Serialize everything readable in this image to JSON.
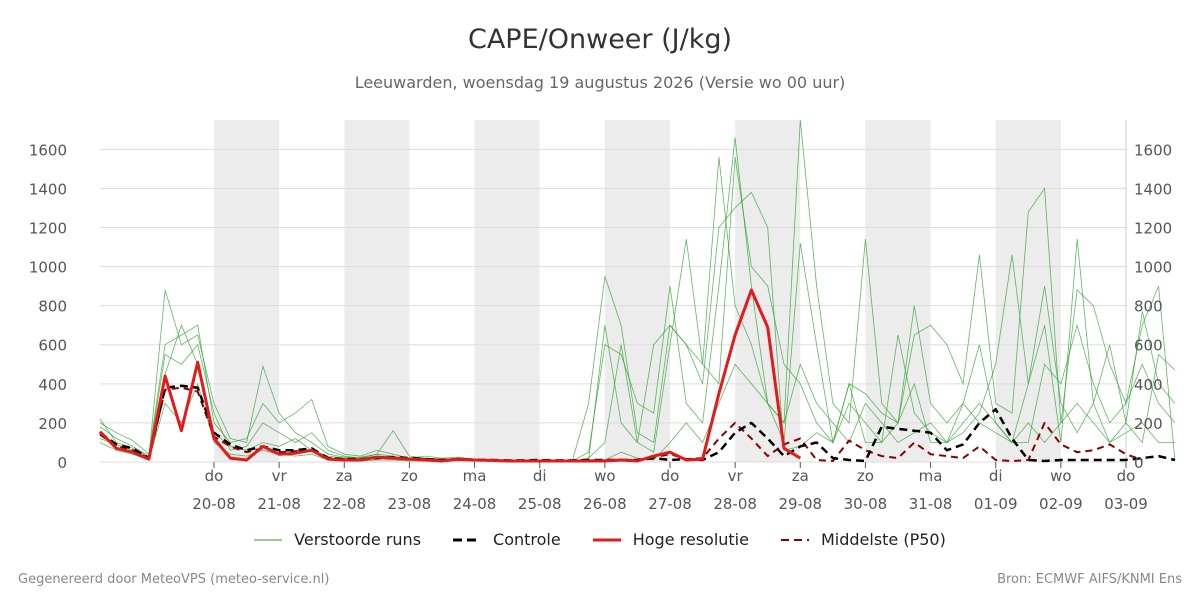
{
  "title": "CAPE/Onweer (J/kg)",
  "subtitle": "Leeuwarden, woensdag 19 augustus 2026 (Versie wo 00 uur)",
  "footer": {
    "generated": "Gegenereerd door MeteoVPS (meteo-service.nl)",
    "source": "Bron: ECMWF AIFS/KNMI Ens"
  },
  "colors": {
    "perturbed": "#2ca02c",
    "control": "#000000",
    "hires": "#e31a1c",
    "median": "#8b0000",
    "night_band": "#ececec",
    "grid": "#dddddd"
  },
  "chart_data": {
    "type": "line",
    "title": "CAPE/Onweer (J/kg)",
    "subtitle": "Leeuwarden, woensdag 19 augustus 2026 (Versie wo 00 uur)",
    "xlabel": "",
    "ylabel": "",
    "ylim": [
      0,
      1750
    ],
    "y_ticks": [
      0,
      200,
      400,
      600,
      800,
      1000,
      1200,
      1400,
      1600
    ],
    "x_ticks": [
      {
        "day": "do",
        "date": "20-08"
      },
      {
        "day": "vr",
        "date": "21-08"
      },
      {
        "day": "za",
        "date": "22-08"
      },
      {
        "day": "zo",
        "date": "23-08"
      },
      {
        "day": "ma",
        "date": "24-08"
      },
      {
        "day": "di",
        "date": "25-08"
      },
      {
        "day": "wo",
        "date": "26-08"
      },
      {
        "day": "do",
        "date": "27-08"
      },
      {
        "day": "vr",
        "date": "28-08"
      },
      {
        "day": "za",
        "date": "29-08"
      },
      {
        "day": "zo",
        "date": "30-08"
      },
      {
        "day": "ma",
        "date": "31-08"
      },
      {
        "day": "di",
        "date": "01-09"
      },
      {
        "day": "wo",
        "date": "02-09"
      },
      {
        "day": "do",
        "date": "03-09"
      }
    ],
    "x_range_days": [
      -1.75,
      14
    ],
    "night_bands_days": [
      [
        0,
        1
      ],
      [
        2,
        3
      ],
      [
        4,
        5
      ],
      [
        6,
        7
      ],
      [
        8,
        9
      ],
      [
        10,
        11
      ],
      [
        12,
        13
      ]
    ],
    "time_step_hours": 6,
    "grid": true,
    "legend_placement": "bottom",
    "series": [
      {
        "name": "Controle",
        "style": "dashed",
        "values": [
          150,
          90,
          70,
          20,
          380,
          390,
          380,
          150,
          90,
          60,
          80,
          60,
          60,
          70,
          20,
          15,
          15,
          20,
          25,
          20,
          15,
          10,
          15,
          12,
          10,
          8,
          8,
          10,
          8,
          8,
          10,
          10,
          10,
          10,
          20,
          10,
          15,
          10,
          50,
          150,
          200,
          120,
          30,
          80,
          100,
          20,
          10,
          5,
          180,
          170,
          160,
          150,
          60,
          90,
          200,
          270,
          120,
          10,
          5,
          10,
          10,
          10,
          10,
          10,
          20,
          30,
          10
        ]
      },
      {
        "name": "Hoge resolutie",
        "style": "solid",
        "values": [
          155,
          70,
          50,
          15,
          440,
          160,
          510,
          120,
          20,
          10,
          80,
          40,
          45,
          60,
          15,
          10,
          10,
          25,
          20,
          15,
          10,
          5,
          15,
          10,
          8,
          5,
          5,
          5,
          5,
          5,
          5,
          5,
          10,
          5,
          30,
          50,
          10,
          15,
          350,
          650,
          880,
          690,
          70,
          20
        ]
      },
      {
        "name": "Middelste (P50)",
        "style": "dashed",
        "values": [
          140,
          80,
          60,
          20,
          370,
          380,
          360,
          130,
          80,
          50,
          70,
          50,
          55,
          60,
          20,
          15,
          15,
          20,
          20,
          18,
          15,
          10,
          12,
          10,
          8,
          6,
          6,
          8,
          6,
          6,
          8,
          8,
          10,
          10,
          25,
          40,
          15,
          20,
          120,
          200,
          120,
          30,
          90,
          120,
          10,
          5,
          110,
          60,
          30,
          20,
          100,
          40,
          30,
          20,
          80,
          10,
          5,
          10,
          200,
          90,
          50,
          60,
          90,
          40,
          10
        ]
      },
      {
        "name": "Verstoorde runs",
        "style": "thin",
        "members": [
          [
            200,
            150,
            110,
            40,
            600,
            650,
            700,
            200,
            100,
            120,
            300,
            200,
            250,
            320,
            80,
            40,
            30,
            60,
            40,
            20,
            30,
            20,
            25,
            15,
            10,
            5,
            10,
            5,
            5,
            5,
            300,
            950,
            700,
            150,
            100,
            700,
            600,
            400,
            1200,
            1300,
            1380,
            1200,
            60,
            80,
            150,
            100,
            400,
            350,
            250,
            200,
            650,
            700,
            600,
            400,
            1060,
            300,
            250,
            1280,
            1400,
            200,
            880,
            800,
            500,
            300,
            700,
            900,
            10
          ],
          [
            180,
            120,
            80,
            30,
            550,
            500,
            600,
            250,
            60,
            80,
            200,
            150,
            100,
            150,
            60,
            30,
            20,
            40,
            30,
            15,
            20,
            15,
            20,
            10,
            8,
            5,
            8,
            5,
            5,
            5,
            50,
            600,
            550,
            300,
            250,
            900,
            300,
            200,
            900,
            1660,
            900,
            300,
            200,
            1750,
            900,
            300,
            200,
            1140,
            300,
            200,
            800,
            300,
            200,
            300,
            600,
            200,
            100,
            400,
            900,
            300,
            150,
            300,
            100,
            200,
            770,
            400,
            300
          ],
          [
            120,
            90,
            60,
            20,
            450,
            700,
            500,
            150,
            80,
            60,
            100,
            80,
            120,
            60,
            30,
            20,
            25,
            40,
            160,
            30,
            20,
            15,
            15,
            10,
            8,
            5,
            5,
            5,
            5,
            5,
            10,
            700,
            200,
            100,
            50,
            600,
            1140,
            500,
            1560,
            800,
            600,
            300,
            100,
            1120,
            600,
            100,
            300,
            200,
            100,
            650,
            250,
            150,
            100,
            150,
            250,
            500,
            1060,
            400,
            700,
            100,
            1140,
            300,
            600,
            200,
            100,
            550,
            470
          ],
          [
            220,
            100,
            70,
            25,
            880,
            600,
            650,
            300,
            120,
            100,
            490,
            250,
            150,
            100,
            40,
            25,
            20,
            30,
            25,
            20,
            15,
            10,
            10,
            10,
            5,
            5,
            5,
            5,
            5,
            5,
            20,
            100,
            600,
            100,
            600,
            700,
            600,
            500,
            400,
            1560,
            1000,
            900,
            500,
            400,
            200,
            100,
            400,
            100,
            100,
            200,
            400,
            100,
            100,
            200,
            300,
            200,
            100,
            100,
            500,
            400,
            700,
            400,
            200,
            300,
            500,
            300,
            200
          ],
          [
            100,
            60,
            40,
            10,
            300,
            200,
            400,
            100,
            40,
            30,
            60,
            40,
            30,
            40,
            10,
            5,
            5,
            10,
            10,
            5,
            5,
            5,
            5,
            5,
            5,
            5,
            5,
            5,
            5,
            5,
            5,
            10,
            50,
            20,
            10,
            100,
            200,
            100,
            300,
            500,
            400,
            300,
            200,
            500,
            300,
            200,
            100,
            300,
            200,
            100,
            150,
            200,
            100,
            300,
            200,
            150,
            100,
            200,
            100,
            200,
            300,
            200,
            100,
            150,
            200,
            100,
            100
          ]
        ]
      }
    ]
  },
  "legend": {
    "perturbed": "Verstoorde runs",
    "control": "Controle",
    "hires": "Hoge resolutie",
    "median": "Middelste (P50)"
  }
}
